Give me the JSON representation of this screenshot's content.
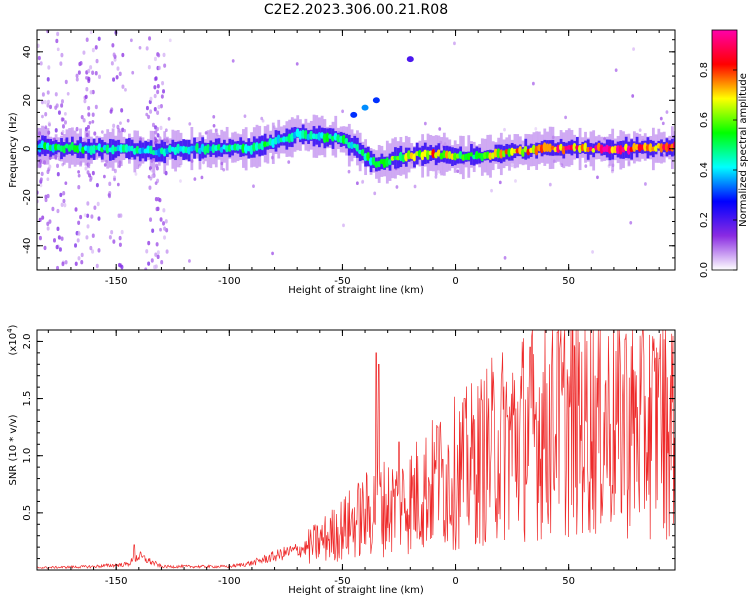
{
  "figure": {
    "title": "C2E2.2023.306.00.21.R08"
  },
  "colorbar": {
    "label": "Normalized spectral amplitude",
    "ticks": [
      "0.0",
      "0.2",
      "0.4",
      "0.6",
      "0.8"
    ],
    "tick_values": [
      0.0,
      0.2,
      0.4,
      0.6,
      0.8
    ],
    "range": [
      0,
      0.96
    ],
    "colormap": [
      "#ffffff",
      "#8a2be2",
      "#0000ff",
      "#00ffff",
      "#00ff00",
      "#ffff00",
      "#ff0000",
      "#ff00aa"
    ]
  },
  "chart_data": [
    {
      "type": "heatmap",
      "title": "",
      "xlabel": "Height of straight line (km)",
      "ylabel": "Frequency (Hz)",
      "xlim": [
        -185,
        97
      ],
      "ylim": [
        -50,
        49
      ],
      "xticks": [
        -150,
        -100,
        -50,
        0,
        50
      ],
      "yticks": [
        -40,
        -20,
        0,
        20,
        40
      ],
      "ridge": {
        "description_x": [
          -185,
          -160,
          -130,
          -110,
          -90,
          -80,
          -70,
          -60,
          -50,
          -45,
          -40,
          -35,
          -30,
          -20,
          -10,
          0,
          10,
          20,
          40,
          60,
          80,
          97
        ],
        "frequency_hz": [
          1,
          0,
          -1,
          0,
          0,
          3,
          6,
          5,
          4,
          1,
          -3,
          -6,
          -5,
          -3,
          -2,
          -3,
          -3,
          -2,
          0,
          0,
          0,
          1
        ],
        "peak_amplitude": [
          0.5,
          0.5,
          0.45,
          0.45,
          0.5,
          0.5,
          0.45,
          0.5,
          0.5,
          0.45,
          0.5,
          0.55,
          0.6,
          0.65,
          0.75,
          0.65,
          0.6,
          0.7,
          0.85,
          0.88,
          0.9,
          0.85
        ]
      },
      "features": [
        {
          "x": -45,
          "freq_hz": 14,
          "amplitude": 0.3
        },
        {
          "x": -40,
          "freq_hz": 17,
          "amplitude": 0.35
        },
        {
          "x": -35,
          "freq_hz": 20,
          "amplitude": 0.3
        },
        {
          "x": -20,
          "freq_hz": 37,
          "amplitude": 0.2
        }
      ],
      "vertical_streaks_x": [
        -182,
        -175,
        -165,
        -160,
        -150,
        -134,
        -130
      ]
    },
    {
      "type": "line",
      "title": "",
      "xlabel": "Height of straight line (km)",
      "ylabel": "SNR (10 * v/v)",
      "multiplier": "(x10",
      "multiplier_exp": "4",
      "multiplier_close": ")",
      "xlim": [
        -185,
        97
      ],
      "ylim": [
        0,
        2.1
      ],
      "xticks": [
        -150,
        -100,
        -50,
        0,
        50
      ],
      "yticks": [
        "0.5",
        "1.0",
        "1.5",
        "2.0"
      ],
      "ytick_values": [
        0.5,
        1.0,
        1.5,
        2.0
      ],
      "series": [
        {
          "color": "#ee2a2a",
          "trend_x": [
            -185,
            -160,
            -145,
            -140,
            -130,
            -100,
            -90,
            -75,
            -65,
            -55,
            -45,
            -38,
            -35,
            -30,
            -20,
            -10,
            0,
            10,
            20,
            30,
            40,
            50,
            60,
            70,
            80,
            97
          ],
          "trend_y": [
            0.02,
            0.03,
            0.05,
            0.12,
            0.03,
            0.03,
            0.06,
            0.15,
            0.2,
            0.3,
            0.42,
            0.5,
            0.55,
            0.55,
            0.62,
            0.75,
            0.85,
            0.95,
            1.1,
            1.2,
            1.25,
            1.3,
            1.3,
            1.3,
            1.25,
            1.3
          ],
          "spikes": [
            {
              "x": -142,
              "y": 0.22
            },
            {
              "x": -35,
              "y": 1.9
            },
            {
              "x": -34,
              "y": 1.8
            },
            {
              "x": -25,
              "y": 1.12
            },
            {
              "x": -8,
              "y": 1.25
            },
            {
              "x": 4,
              "y": 1.5
            },
            {
              "x": 33,
              "y": 1.95
            },
            {
              "x": 45,
              "y": 2.08
            },
            {
              "x": 75,
              "y": 2.02
            },
            {
              "x": 90,
              "y": 1.85
            }
          ]
        }
      ]
    }
  ]
}
